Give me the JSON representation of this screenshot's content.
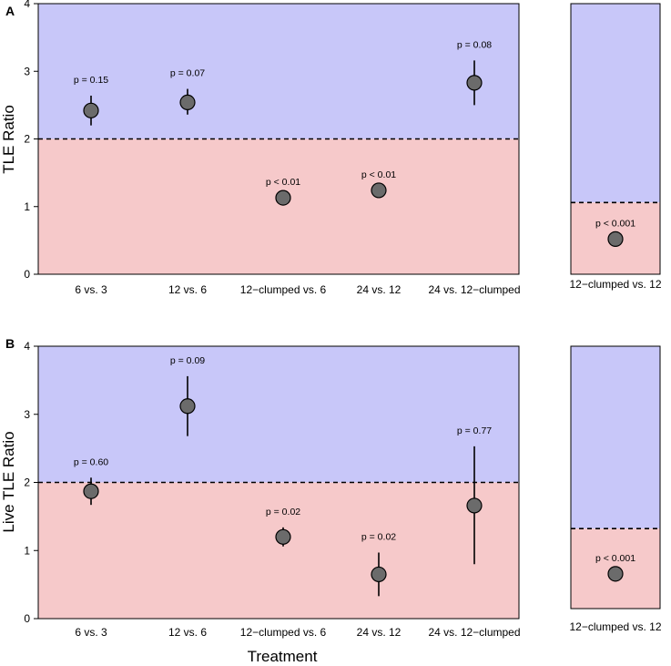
{
  "colors": {
    "above_fill": "#c8c7f9",
    "below_fill": "#f6c9ca",
    "point_fill": "#6b6b6b",
    "point_stroke": "#000000",
    "errorbar": "#000000",
    "reference_line": "#000000"
  },
  "xlabel": "Treatment",
  "chart_data": [
    {
      "panel_label": "A",
      "type": "scatter",
      "ylabel": "TLE Ratio",
      "ylim": [
        0,
        4
      ],
      "yticks": [
        "0",
        "1",
        "2",
        "3",
        "4"
      ],
      "reference_line": 2,
      "categories": [
        "6 vs. 3",
        "12 vs. 6",
        "12−clumped vs. 6",
        "24 vs. 12",
        "24 vs. 12−clumped"
      ],
      "values": [
        2.42,
        2.54,
        1.13,
        1.24,
        2.83
      ],
      "lower": [
        2.2,
        2.36,
        1.13,
        1.24,
        2.5
      ],
      "upper": [
        2.64,
        2.74,
        1.13,
        1.24,
        3.16
      ],
      "annotations": [
        "p = 0.15",
        "p = 0.07",
        "p < 0.01",
        "p < 0.01",
        "p = 0.08"
      ]
    },
    {
      "panel_label": "",
      "type": "scatter",
      "ylabel": "",
      "ylim": [
        0,
        4
      ],
      "reference_line": 1.06,
      "categories": [
        "12−clumped vs. 12"
      ],
      "values": [
        0.52
      ],
      "lower": [
        0.52
      ],
      "upper": [
        0.52
      ],
      "annotations": [
        "p < 0.001"
      ]
    },
    {
      "panel_label": "B",
      "type": "scatter",
      "ylabel": "Live TLE Ratio",
      "ylim": [
        0,
        4
      ],
      "yticks": [
        "0",
        "1",
        "2",
        "3",
        "4"
      ],
      "reference_line": 2,
      "categories": [
        "6 vs. 3",
        "12 vs. 6",
        "12−clumped vs. 6",
        "24 vs. 12",
        "24 vs. 12−clumped"
      ],
      "values": [
        1.87,
        3.12,
        1.2,
        0.65,
        1.66
      ],
      "lower": [
        1.67,
        2.68,
        1.06,
        0.33,
        0.8
      ],
      "upper": [
        2.07,
        3.56,
        1.34,
        0.97,
        2.53
      ],
      "annotations": [
        "p = 0.60",
        "p = 0.09",
        "p = 0.02",
        "p = 0.02",
        "p = 0.77"
      ]
    },
    {
      "panel_label": "",
      "type": "scatter",
      "ylabel": "",
      "ylim": [
        0,
        4
      ],
      "reference_line": 1.22,
      "categories": [
        "12−clumped vs. 12"
      ],
      "values": [
        0.53
      ],
      "lower": [
        0.53
      ],
      "upper": [
        0.53
      ],
      "annotations": [
        "p < 0.001"
      ]
    }
  ]
}
